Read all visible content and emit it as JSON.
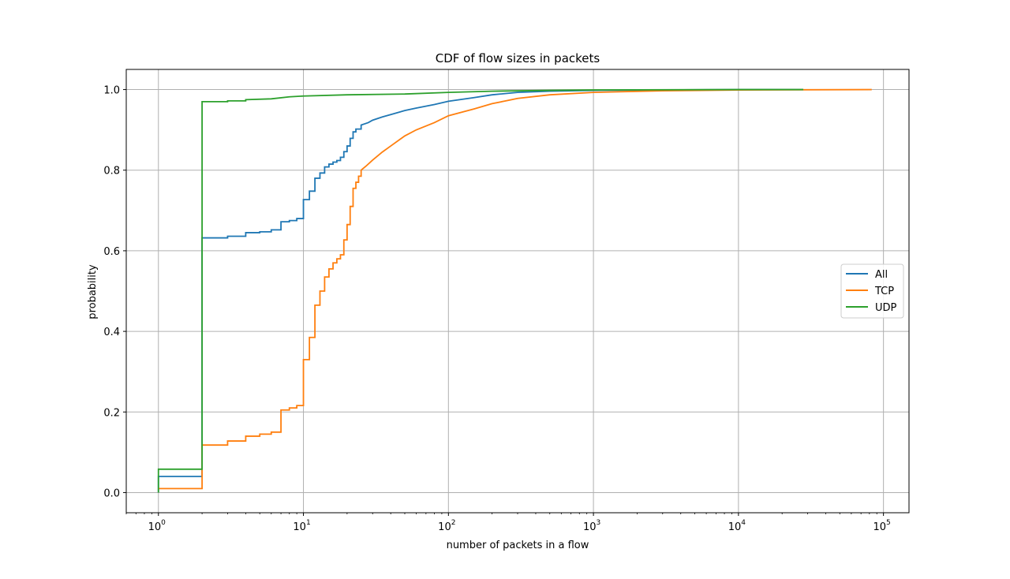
{
  "chart_data": {
    "type": "line",
    "title": "CDF of flow sizes in packets",
    "xlabel": "number of packets in a flow",
    "ylabel": "probability",
    "xscale": "log",
    "xlim": [
      0.6,
      150000
    ],
    "ylim": [
      -0.05,
      1.05
    ],
    "grid": true,
    "legend_position": "center-right",
    "x_ticks": [
      {
        "value": 1,
        "base": "10",
        "exp": "0"
      },
      {
        "value": 10,
        "base": "10",
        "exp": "1"
      },
      {
        "value": 100,
        "base": "10",
        "exp": "2"
      },
      {
        "value": 1000,
        "base": "10",
        "exp": "3"
      },
      {
        "value": 10000,
        "base": "10",
        "exp": "4"
      },
      {
        "value": 100000,
        "base": "10",
        "exp": "5"
      }
    ],
    "y_ticks": [
      {
        "value": 0.0,
        "label": "0.0"
      },
      {
        "value": 0.2,
        "label": "0.2"
      },
      {
        "value": 0.4,
        "label": "0.4"
      },
      {
        "value": 0.6,
        "label": "0.6"
      },
      {
        "value": 0.8,
        "label": "0.8"
      },
      {
        "value": 1.0,
        "label": "1.0"
      }
    ],
    "series": [
      {
        "name": "All",
        "color": "#1f77b4",
        "points": [
          [
            1,
            0
          ],
          [
            1,
            0.04
          ],
          [
            2,
            0.04
          ],
          [
            2,
            0.632
          ],
          [
            3,
            0.632
          ],
          [
            3,
            0.636
          ],
          [
            4,
            0.636
          ],
          [
            4,
            0.645
          ],
          [
            5,
            0.645
          ],
          [
            5,
            0.647
          ],
          [
            6,
            0.647
          ],
          [
            6,
            0.652
          ],
          [
            7,
            0.652
          ],
          [
            7,
            0.672
          ],
          [
            8,
            0.672
          ],
          [
            8,
            0.675
          ],
          [
            9,
            0.675
          ],
          [
            9,
            0.68
          ],
          [
            10,
            0.68
          ],
          [
            10,
            0.727
          ],
          [
            11,
            0.727
          ],
          [
            11,
            0.748
          ],
          [
            12,
            0.748
          ],
          [
            12,
            0.78
          ],
          [
            13,
            0.78
          ],
          [
            13,
            0.793
          ],
          [
            14,
            0.793
          ],
          [
            14,
            0.808
          ],
          [
            15,
            0.808
          ],
          [
            15,
            0.815
          ],
          [
            16,
            0.815
          ],
          [
            16,
            0.82
          ],
          [
            17,
            0.82
          ],
          [
            17,
            0.824
          ],
          [
            18,
            0.824
          ],
          [
            18,
            0.832
          ],
          [
            19,
            0.832
          ],
          [
            19,
            0.846
          ],
          [
            20,
            0.846
          ],
          [
            20,
            0.86
          ],
          [
            21,
            0.86
          ],
          [
            21,
            0.879
          ],
          [
            22,
            0.879
          ],
          [
            22,
            0.895
          ],
          [
            23,
            0.895
          ],
          [
            23,
            0.902
          ],
          [
            25,
            0.902
          ],
          [
            25,
            0.912
          ],
          [
            28,
            0.918
          ],
          [
            30,
            0.924
          ],
          [
            35,
            0.932
          ],
          [
            40,
            0.938
          ],
          [
            50,
            0.948
          ],
          [
            60,
            0.954
          ],
          [
            80,
            0.963
          ],
          [
            100,
            0.971
          ],
          [
            150,
            0.98
          ],
          [
            200,
            0.987
          ],
          [
            300,
            0.993
          ],
          [
            500,
            0.996
          ],
          [
            1000,
            0.998
          ],
          [
            3000,
            0.999
          ],
          [
            10000,
            1.0
          ],
          [
            28000,
            1.0
          ]
        ]
      },
      {
        "name": "TCP",
        "color": "#ff7f0e",
        "points": [
          [
            1,
            0.01
          ],
          [
            2,
            0.01
          ],
          [
            2,
            0.118
          ],
          [
            3,
            0.118
          ],
          [
            3,
            0.128
          ],
          [
            4,
            0.128
          ],
          [
            4,
            0.14
          ],
          [
            5,
            0.14
          ],
          [
            5,
            0.145
          ],
          [
            6,
            0.145
          ],
          [
            6,
            0.15
          ],
          [
            7,
            0.15
          ],
          [
            7,
            0.205
          ],
          [
            8,
            0.205
          ],
          [
            8,
            0.21
          ],
          [
            9,
            0.21
          ],
          [
            9,
            0.216
          ],
          [
            10,
            0.216
          ],
          [
            10,
            0.33
          ],
          [
            11,
            0.33
          ],
          [
            11,
            0.385
          ],
          [
            12,
            0.385
          ],
          [
            12,
            0.465
          ],
          [
            13,
            0.465
          ],
          [
            13,
            0.5
          ],
          [
            14,
            0.5
          ],
          [
            14,
            0.535
          ],
          [
            15,
            0.535
          ],
          [
            15,
            0.555
          ],
          [
            16,
            0.555
          ],
          [
            16,
            0.57
          ],
          [
            17,
            0.57
          ],
          [
            17,
            0.58
          ],
          [
            18,
            0.58
          ],
          [
            18,
            0.59
          ],
          [
            19,
            0.59
          ],
          [
            19,
            0.627
          ],
          [
            20,
            0.627
          ],
          [
            20,
            0.665
          ],
          [
            21,
            0.665
          ],
          [
            21,
            0.71
          ],
          [
            22,
            0.71
          ],
          [
            22,
            0.755
          ],
          [
            23,
            0.755
          ],
          [
            23,
            0.77
          ],
          [
            24,
            0.77
          ],
          [
            24,
            0.785
          ],
          [
            25,
            0.785
          ],
          [
            25,
            0.8
          ],
          [
            27,
            0.81
          ],
          [
            30,
            0.825
          ],
          [
            35,
            0.845
          ],
          [
            40,
            0.86
          ],
          [
            50,
            0.885
          ],
          [
            60,
            0.9
          ],
          [
            80,
            0.918
          ],
          [
            100,
            0.935
          ],
          [
            150,
            0.952
          ],
          [
            200,
            0.965
          ],
          [
            300,
            0.978
          ],
          [
            500,
            0.987
          ],
          [
            1000,
            0.993
          ],
          [
            3000,
            0.997
          ],
          [
            10000,
            0.999
          ],
          [
            83000,
            1.0
          ]
        ]
      },
      {
        "name": "UDP",
        "color": "#2ca02c",
        "points": [
          [
            1,
            0
          ],
          [
            1,
            0.058
          ],
          [
            2,
            0.058
          ],
          [
            2,
            0.97
          ],
          [
            3,
            0.97
          ],
          [
            3,
            0.972
          ],
          [
            4,
            0.972
          ],
          [
            4,
            0.975
          ],
          [
            6,
            0.977
          ],
          [
            8,
            0.982
          ],
          [
            10,
            0.984
          ],
          [
            20,
            0.987
          ],
          [
            50,
            0.989
          ],
          [
            100,
            0.993
          ],
          [
            200,
            0.996
          ],
          [
            500,
            0.998
          ],
          [
            1000,
            0.999
          ],
          [
            10000,
            1.0
          ],
          [
            28000,
            1.0
          ]
        ]
      }
    ]
  }
}
